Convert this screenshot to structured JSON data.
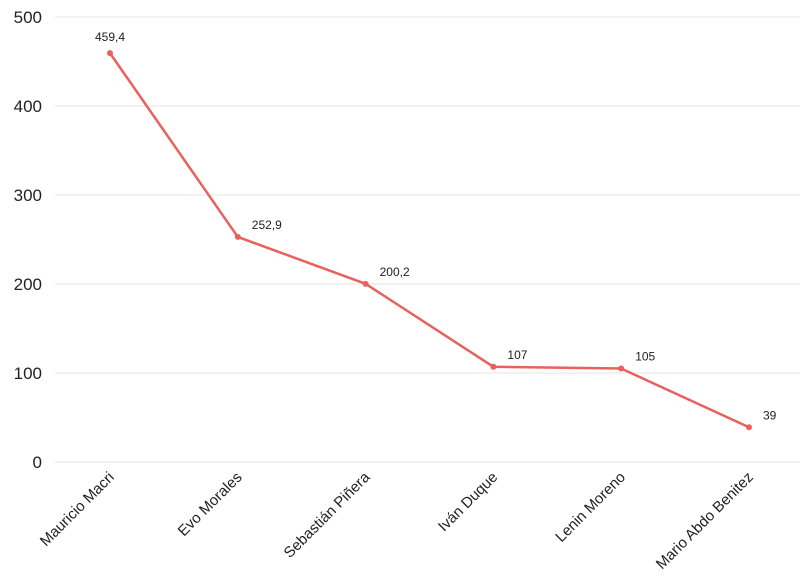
{
  "chart_data": {
    "type": "line",
    "title": "",
    "xlabel": "",
    "ylabel": "",
    "categories": [
      "Mauricio Macri",
      "Evo Morales",
      "Sebastián Piñera",
      "Iván Duque",
      "Lenin Moreno",
      "Mario Abdo Benitez"
    ],
    "series": [
      {
        "values": [
          459.4,
          252.9,
          200.2,
          107,
          105,
          39
        ],
        "value_labels": [
          "459,4",
          "252,9",
          "200,2",
          "107",
          "105",
          "39"
        ],
        "color": "#e8615d"
      }
    ],
    "ylim": [
      0,
      500
    ],
    "yticks": [
      0,
      100,
      200,
      300,
      400,
      500
    ],
    "grid": true,
    "legend": "none"
  }
}
